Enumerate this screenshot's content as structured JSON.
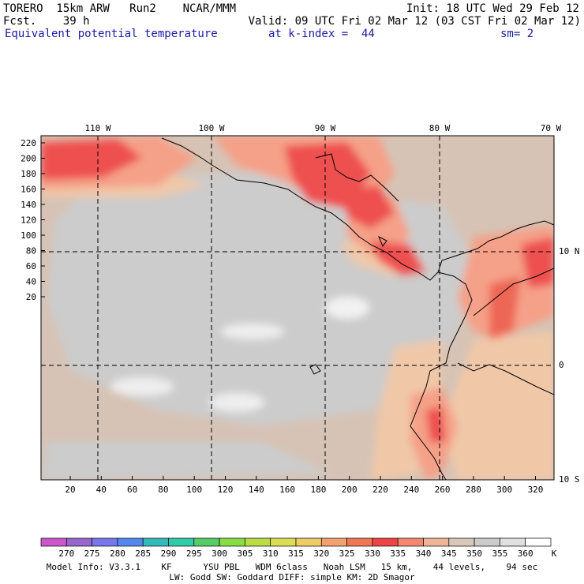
{
  "header": {
    "line1_left": "TORERO  15km ARW   Run2    NCAR/MMM",
    "line1_right": "Init: 18 UTC Wed 29 Feb 12",
    "line2_left": "Fcst.    39 h",
    "line2_right": "Valid: 09 UTC Fri 02 Mar 12 (03 CST Fri 02 Mar 12)",
    "line3_field": "Equivalent potential temperature",
    "line3_level": "at k-index =  44",
    "line3_smooth": "sm= 2"
  },
  "map": {
    "lon_labels": [
      "110 W",
      "100 W",
      "90 W",
      "80 W",
      "70 W"
    ],
    "lat_labels": [
      "10 N",
      "0",
      "10 S"
    ],
    "y_ticks": [
      "220",
      "200",
      "180",
      "160",
      "140",
      "120",
      "100",
      "80",
      "60",
      "40",
      "20"
    ],
    "x_ticks": [
      "20",
      "40",
      "60",
      "80",
      "100",
      "120",
      "140",
      "160",
      "180",
      "200",
      "220",
      "240",
      "260",
      "280",
      "300",
      "320"
    ]
  },
  "colorbar": {
    "unit": "K",
    "levels": [
      "270",
      "275",
      "280",
      "285",
      "290",
      "295",
      "300",
      "305",
      "310",
      "315",
      "320",
      "325",
      "330",
      "335",
      "340",
      "345",
      "350",
      "355",
      "360"
    ],
    "colors": [
      "#cc55cc",
      "#9966cc",
      "#7777ee",
      "#5588ee",
      "#33bbbb",
      "#33ccaa",
      "#55cc66",
      "#88dd44",
      "#bbdd44",
      "#dddd55",
      "#eecc66",
      "#f5a070",
      "#ee7755",
      "#ee4444",
      "#f5886e",
      "#f0b598",
      "#d9c8b8",
      "#cccccc",
      "#e0e0e0",
      "#ffffff"
    ]
  },
  "footer": {
    "line1": "Model Info: V3.3.1    KF      YSU PBL   WDM 6class   Noah LSM   15 km,    44 levels,    94 sec",
    "line2": "LW: Godd SW: Goddard DIFF: simple KM: 2D Smagor"
  }
}
